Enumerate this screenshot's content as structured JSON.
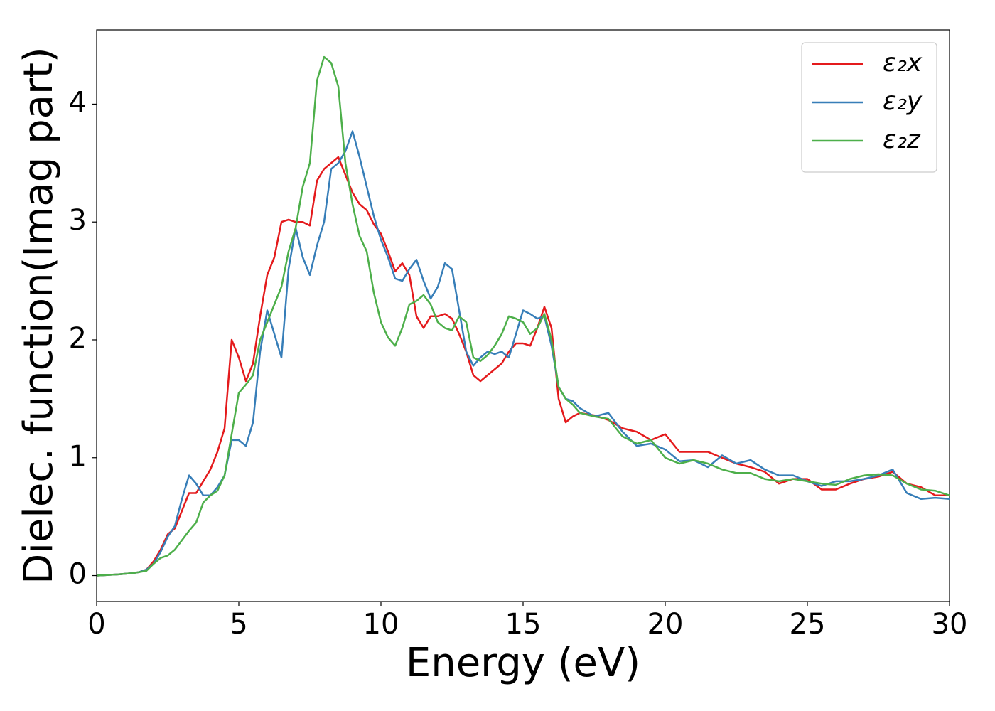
{
  "chart_data": {
    "type": "line",
    "xlabel": "Energy (eV)",
    "ylabel": "Dielec. function(Imag part)",
    "xlim": [
      0,
      30
    ],
    "ylim": [
      -0.22,
      4.63
    ],
    "xticks": [
      0,
      5,
      10,
      15,
      20,
      25,
      30
    ],
    "yticks": [
      0,
      1,
      2,
      3,
      4
    ],
    "grid": false,
    "legend": "upper right",
    "x": [
      0,
      0.25,
      0.5,
      0.75,
      1,
      1.25,
      1.5,
      1.75,
      2,
      2.25,
      2.5,
      2.75,
      3,
      3.25,
      3.5,
      3.75,
      4,
      4.25,
      4.5,
      4.75,
      5,
      5.25,
      5.5,
      5.75,
      6,
      6.25,
      6.5,
      6.75,
      7,
      7.25,
      7.5,
      7.75,
      8,
      8.25,
      8.5,
      8.75,
      9,
      9.25,
      9.5,
      9.75,
      10,
      10.25,
      10.5,
      10.75,
      11,
      11.25,
      11.5,
      11.75,
      12,
      12.25,
      12.5,
      12.75,
      13,
      13.25,
      13.5,
      13.75,
      14,
      14.25,
      14.5,
      14.75,
      15,
      15.25,
      15.5,
      15.75,
      16,
      16.25,
      16.5,
      16.75,
      17,
      17.5,
      18,
      18.5,
      19,
      19.5,
      20,
      20.5,
      21,
      21.5,
      22,
      22.5,
      23,
      23.5,
      24,
      24.5,
      25,
      25.5,
      26,
      26.5,
      27,
      27.5,
      28,
      28.5,
      29,
      29.5,
      30
    ],
    "series": [
      {
        "name": "ε₂x",
        "color": "#e41a1c",
        "values": [
          0,
          0.003,
          0.007,
          0.01,
          0.015,
          0.02,
          0.03,
          0.05,
          0.12,
          0.22,
          0.35,
          0.4,
          0.55,
          0.7,
          0.7,
          0.8,
          0.9,
          1.05,
          1.25,
          2.0,
          1.85,
          1.65,
          1.8,
          2.2,
          2.55,
          2.7,
          3.0,
          3.02,
          3.0,
          3.0,
          2.97,
          3.35,
          3.45,
          3.5,
          3.55,
          3.4,
          3.25,
          3.15,
          3.1,
          2.98,
          2.9,
          2.75,
          2.58,
          2.65,
          2.55,
          2.2,
          2.1,
          2.2,
          2.2,
          2.22,
          2.18,
          2.05,
          1.9,
          1.7,
          1.65,
          1.7,
          1.75,
          1.8,
          1.9,
          1.97,
          1.97,
          1.95,
          2.1,
          2.28,
          2.1,
          1.5,
          1.3,
          1.35,
          1.38,
          1.36,
          1.32,
          1.25,
          1.22,
          1.15,
          1.2,
          1.05,
          1.05,
          1.05,
          1.0,
          0.95,
          0.92,
          0.88,
          0.78,
          0.82,
          0.82,
          0.73,
          0.73,
          0.78,
          0.82,
          0.84,
          0.88,
          0.78,
          0.75,
          0.68,
          0.68
        ]
      },
      {
        "name": "ε₂y",
        "color": "#377eb8",
        "values": [
          0,
          0.003,
          0.007,
          0.01,
          0.015,
          0.02,
          0.03,
          0.05,
          0.1,
          0.2,
          0.33,
          0.42,
          0.65,
          0.85,
          0.78,
          0.68,
          0.68,
          0.75,
          0.85,
          1.15,
          1.15,
          1.1,
          1.3,
          1.9,
          2.25,
          2.05,
          1.85,
          2.6,
          2.95,
          2.7,
          2.55,
          2.8,
          3.0,
          3.45,
          3.5,
          3.6,
          3.77,
          3.55,
          3.3,
          3.05,
          2.85,
          2.7,
          2.52,
          2.5,
          2.6,
          2.68,
          2.5,
          2.35,
          2.45,
          2.65,
          2.6,
          2.25,
          1.9,
          1.78,
          1.85,
          1.9,
          1.88,
          1.9,
          1.85,
          2.05,
          2.25,
          2.22,
          2.18,
          2.2,
          1.95,
          1.6,
          1.5,
          1.48,
          1.42,
          1.35,
          1.38,
          1.22,
          1.1,
          1.12,
          1.07,
          0.97,
          0.98,
          0.92,
          1.02,
          0.95,
          0.98,
          0.9,
          0.85,
          0.85,
          0.8,
          0.76,
          0.8,
          0.8,
          0.82,
          0.85,
          0.9,
          0.7,
          0.65,
          0.66,
          0.65
        ]
      },
      {
        "name": "ε₂z",
        "color": "#4daf4a",
        "values": [
          0,
          0.003,
          0.007,
          0.01,
          0.015,
          0.02,
          0.03,
          0.04,
          0.1,
          0.15,
          0.17,
          0.22,
          0.3,
          0.38,
          0.45,
          0.62,
          0.68,
          0.72,
          0.85,
          1.2,
          1.55,
          1.62,
          1.7,
          2.0,
          2.15,
          2.3,
          2.45,
          2.75,
          2.95,
          3.3,
          3.5,
          4.2,
          4.4,
          4.35,
          4.15,
          3.5,
          3.15,
          2.88,
          2.75,
          2.4,
          2.15,
          2.02,
          1.95,
          2.1,
          2.3,
          2.33,
          2.38,
          2.3,
          2.15,
          2.1,
          2.08,
          2.2,
          2.15,
          1.85,
          1.82,
          1.87,
          1.95,
          2.05,
          2.2,
          2.18,
          2.15,
          2.05,
          2.1,
          2.22,
          2.0,
          1.6,
          1.5,
          1.45,
          1.38,
          1.35,
          1.33,
          1.18,
          1.12,
          1.15,
          1.0,
          0.95,
          0.98,
          0.95,
          0.9,
          0.87,
          0.87,
          0.82,
          0.8,
          0.82,
          0.8,
          0.78,
          0.77,
          0.82,
          0.85,
          0.86,
          0.85,
          0.78,
          0.73,
          0.72,
          0.68
        ]
      }
    ]
  }
}
